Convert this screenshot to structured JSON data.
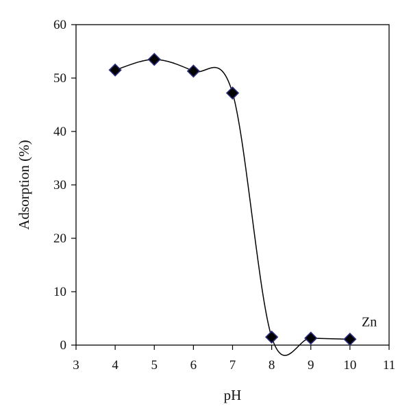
{
  "chart_data": {
    "type": "scatter",
    "title": "",
    "xlabel": "pH",
    "ylabel": "Adsorption (%)",
    "xlim": [
      3,
      11
    ],
    "ylim": [
      0,
      60
    ],
    "xticks": [
      3,
      4,
      5,
      6,
      7,
      8,
      9,
      10,
      11
    ],
    "yticks": [
      0,
      10,
      20,
      30,
      40,
      50,
      60
    ],
    "grid": false,
    "legend": "none",
    "annotations": [
      {
        "text": "Zn",
        "x": 10.3,
        "y": 3.5
      }
    ],
    "series": [
      {
        "x": [
          4,
          5,
          6,
          7,
          8,
          9,
          10
        ],
        "y": [
          51.5,
          53.5,
          51.3,
          47.2,
          1.5,
          1.3,
          1.1
        ],
        "marker": "diamond",
        "marker_color": "#000000",
        "marker_edge_color": "#2b2d7a",
        "line": "smooth",
        "line_color": "#000000"
      }
    ]
  }
}
